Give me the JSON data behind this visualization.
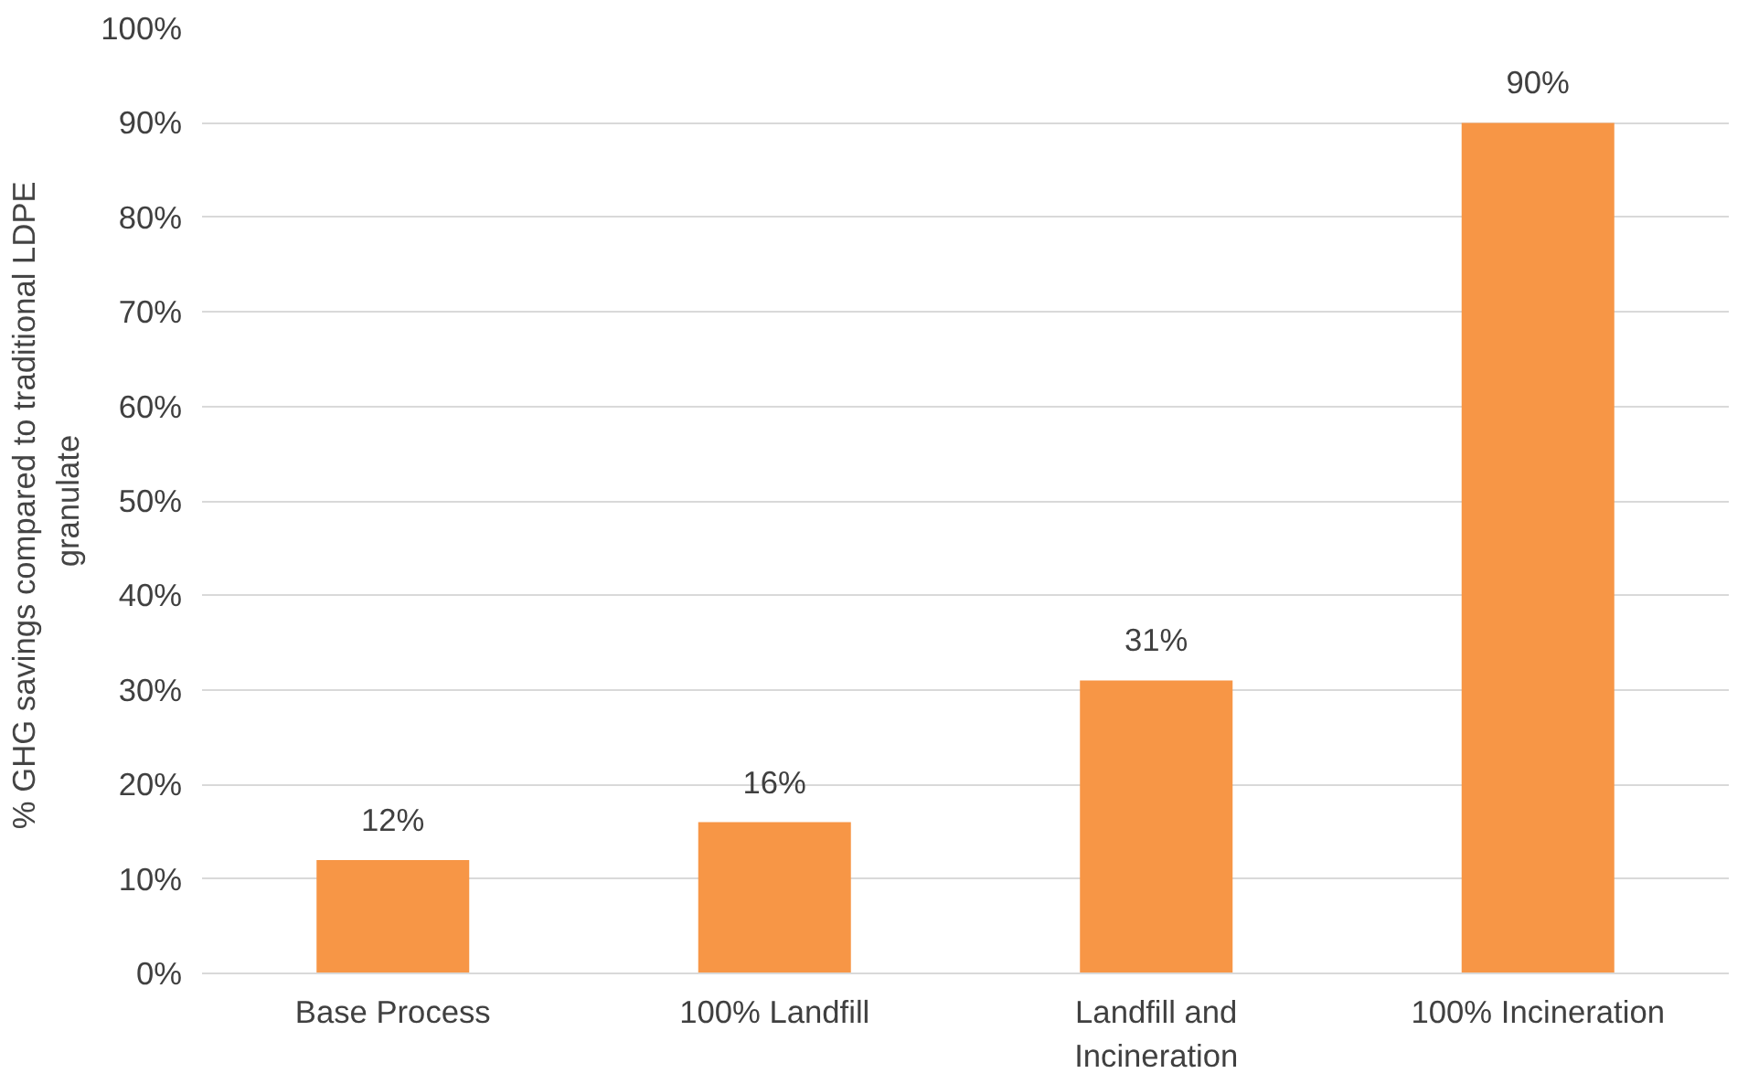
{
  "chart_data": {
    "type": "bar",
    "ylabel": "% GHG savings compared to traditional  LDPE granulate",
    "categories": [
      "Base Process",
      "100% Landfill",
      "Landfill and Incineration",
      "100% Incineration"
    ],
    "values": [
      12,
      16,
      31,
      90
    ],
    "color": "#f79646",
    "value_labels": [
      "12%",
      "16%",
      "31%",
      "90%"
    ],
    "ylim": [
      0,
      100
    ],
    "yticks": [
      {
        "value": 0,
        "label": "0%"
      },
      {
        "value": 10,
        "label": "10%"
      },
      {
        "value": 20,
        "label": "20%"
      },
      {
        "value": 30,
        "label": "30%"
      },
      {
        "value": 40,
        "label": "40%"
      },
      {
        "value": 50,
        "label": "50%"
      },
      {
        "value": 60,
        "label": "60%"
      },
      {
        "value": 70,
        "label": "70%"
      },
      {
        "value": 80,
        "label": "80%"
      },
      {
        "value": 90,
        "label": "90%"
      },
      {
        "value": 100,
        "label": "100%"
      }
    ],
    "grid": "y"
  }
}
